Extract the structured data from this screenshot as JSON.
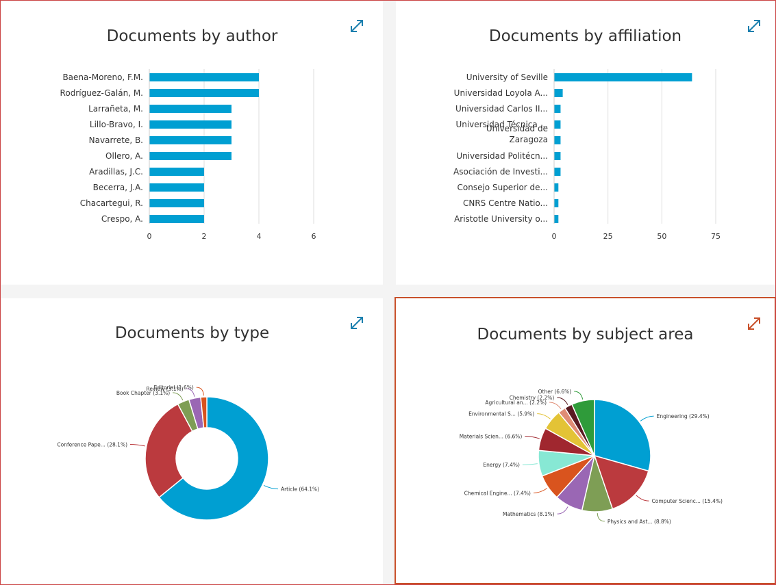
{
  "colors": {
    "bar": "#009fd2",
    "grid": "#dedede",
    "expand_icon": "#1a7fae",
    "expand_icon_selected": "#c8502a"
  },
  "panels": {
    "author": {
      "title": "Documents by author",
      "expand_icon": "expand-icon"
    },
    "affiliation": {
      "title": "Documents by affiliation",
      "expand_icon": "expand-icon"
    },
    "type": {
      "title": "Documents by type",
      "expand_icon": "expand-icon"
    },
    "subject": {
      "title": "Documents by subject area",
      "expand_icon": "expand-icon"
    }
  },
  "chart_data": [
    {
      "id": "author",
      "type": "bar",
      "orientation": "horizontal",
      "title": "Documents by author",
      "categories": [
        "Baena-Moreno, F.M.",
        "Rodríguez-Galán, M.",
        "Larrañeta, M.",
        "Lillo-Bravo, I.",
        "Navarrete, B.",
        "Ollero, A.",
        "Aradillas, J.C.",
        "Becerra, J.A.",
        "Chacartegui, R.",
        "Crespo, A."
      ],
      "values": [
        4,
        4,
        3,
        3,
        3,
        3,
        2,
        2,
        2,
        2
      ],
      "xticks": [
        "0",
        "2",
        "4",
        "6"
      ],
      "xlim": [
        0,
        6.2
      ],
      "grid": true
    },
    {
      "id": "affiliation",
      "type": "bar",
      "orientation": "horizontal",
      "title": "Documents by affiliation",
      "categories": [
        "University of Seville",
        "Universidad Loyola A...",
        "Universidad Carlos II...",
        "Universidad Técnica ...",
        "Universidad de Zaragoza",
        "Universidad Politécn...",
        "Asociación de Investi...",
        "Consejo Superior de...",
        "CNRS Centre Natio...",
        "Aristotle University o..."
      ],
      "values": [
        64,
        4,
        3,
        3,
        3,
        3,
        3,
        2,
        2,
        2
      ],
      "xticks": [
        "0",
        "25",
        "50",
        "75"
      ],
      "xlim": [
        0,
        75
      ],
      "grid": true
    },
    {
      "id": "type",
      "type": "pie",
      "donut": true,
      "title": "Documents by type",
      "slices": [
        {
          "label": "Article (64.1%)",
          "value": 64.1,
          "color": "#009fd2"
        },
        {
          "label": "Conference Pape... (28.1%)",
          "value": 28.1,
          "color": "#bb3a3e"
        },
        {
          "label": "Book Chapter (3.1%)",
          "value": 3.1,
          "color": "#7e9e55"
        },
        {
          "label": "Review (3.1%)",
          "value": 3.1,
          "color": "#9a67b4"
        },
        {
          "label": "Editorial (1.6%)",
          "value": 1.6,
          "color": "#d9541e"
        }
      ]
    },
    {
      "id": "subject",
      "type": "pie",
      "donut": false,
      "title": "Documents by subject area",
      "slices": [
        {
          "label": "Engineering (29.4%)",
          "value": 29.4,
          "color": "#009fd2"
        },
        {
          "label": "Computer Scienc... (15.4%)",
          "value": 15.4,
          "color": "#bb3a3e"
        },
        {
          "label": "Physics and Ast... (8.8%)",
          "value": 8.8,
          "color": "#7e9e55"
        },
        {
          "label": "Mathematics (8.1%)",
          "value": 8.1,
          "color": "#9a67b4"
        },
        {
          "label": "Chemical Engine... (7.4%)",
          "value": 7.4,
          "color": "#d9541e"
        },
        {
          "label": "Energy (7.4%)",
          "value": 7.4,
          "color": "#87e8d4"
        },
        {
          "label": "Materials Scien... (6.6%)",
          "value": 6.6,
          "color": "#a0272f"
        },
        {
          "label": "Environmental S... (5.9%)",
          "value": 5.9,
          "color": "#e3c336"
        },
        {
          "label": "Agricultural an... (2.2%)",
          "value": 2.2,
          "color": "#e08c75"
        },
        {
          "label": "Chemistry (2.2%)",
          "value": 2.2,
          "color": "#5a1b22"
        },
        {
          "label": "Other (6.6%)",
          "value": 6.6,
          "color": "#2f9b3a"
        }
      ]
    }
  ]
}
